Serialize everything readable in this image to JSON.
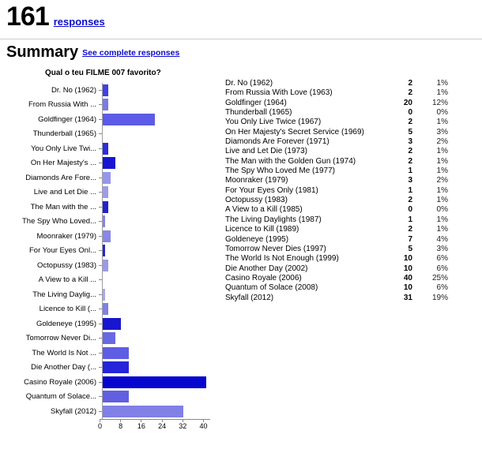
{
  "header": {
    "response_count": "161",
    "responses_label": "responses"
  },
  "summary": {
    "title": "Summary",
    "see_complete_label": "See complete responses"
  },
  "colors": {
    "link": "#0b0bcd",
    "axis": "#888888"
  },
  "chart_data": {
    "type": "bar",
    "orientation": "horizontal",
    "title": "Qual o teu FILME 007 favorito?",
    "xlabel": "",
    "ylabel": "",
    "xlim": [
      0,
      40
    ],
    "x_ticks": [
      0,
      8,
      16,
      24,
      32,
      40
    ],
    "grid": false,
    "legend": "none",
    "categories": [
      "Dr. No (1962)",
      "From Russia With Love (1963)",
      "Goldfinger (1964)",
      "Thunderball (1965)",
      "You Only Live Twice (1967)",
      "On Her Majesty's Secret Service (1969)",
      "Diamonds Are Forever (1971)",
      "Live and Let Die (1973)",
      "The Man with the Golden Gun (1974)",
      "The Spy Who Loved Me (1977)",
      "Moonraker (1979)",
      "For Your Eyes Only (1981)",
      "Octopussy (1983)",
      "A View to a Kill (1985)",
      "The Living Daylights (1987)",
      "Licence to Kill (1989)",
      "Goldeneye (1995)",
      "Tomorrow Never Dies (1997)",
      "The World Is Not Enough (1999)",
      "Die Another Day (2002)",
      "Casino Royale (2006)",
      "Quantum of Solace (2008)",
      "Skyfall (2012)"
    ],
    "axis_labels": [
      "Dr. No (1962)",
      "From Russia With ...",
      "Goldfinger  (1964)",
      "Thunderball (1965)",
      "You Only Live Twi...",
      "On Her Majesty's ...",
      "Diamonds Are Fore...",
      "Live and Let Die ...",
      "The Man with the ...",
      "The Spy Who Loved...",
      "Moonraker (1979)",
      "For Your Eyes Onl...",
      "Octopussy (1983)",
      "A View to a Kill ...",
      "The Living Daylig...",
      "Licence to Kill (...",
      "Goldeneye (1995)",
      "Tomorrow Never Di...",
      "The World Is Not ...",
      "Die Another Day (...",
      "Casino Royale (2006)",
      "Quantum of Solace...",
      "Skyfall (2012)"
    ],
    "values": [
      2,
      2,
      20,
      0,
      2,
      5,
      3,
      2,
      2,
      1,
      3,
      1,
      2,
      0,
      1,
      2,
      7,
      5,
      10,
      10,
      40,
      10,
      31
    ],
    "percentages": [
      "1%",
      "1%",
      "12%",
      "0%",
      "1%",
      "3%",
      "2%",
      "1%",
      "1%",
      "1%",
      "2%",
      "1%",
      "1%",
      "0%",
      "1%",
      "1%",
      "4%",
      "3%",
      "6%",
      "6%",
      "25%",
      "6%",
      "19%"
    ],
    "bar_colors": [
      "#4141e2",
      "#7b7be8",
      "#5c5ce6",
      "#8888e8",
      "#2d2dd9",
      "#1616d2",
      "#9696ec",
      "#9c9cea",
      "#2222d0",
      "#8484e2",
      "#8888e6",
      "#2828cc",
      "#9a9ae8",
      "#8888e8",
      "#a8a8ec",
      "#8080e4",
      "#1717cf",
      "#6868e2",
      "#5e5ee4",
      "#2525da",
      "#0606cf",
      "#6060e0",
      "#8080e6"
    ]
  }
}
